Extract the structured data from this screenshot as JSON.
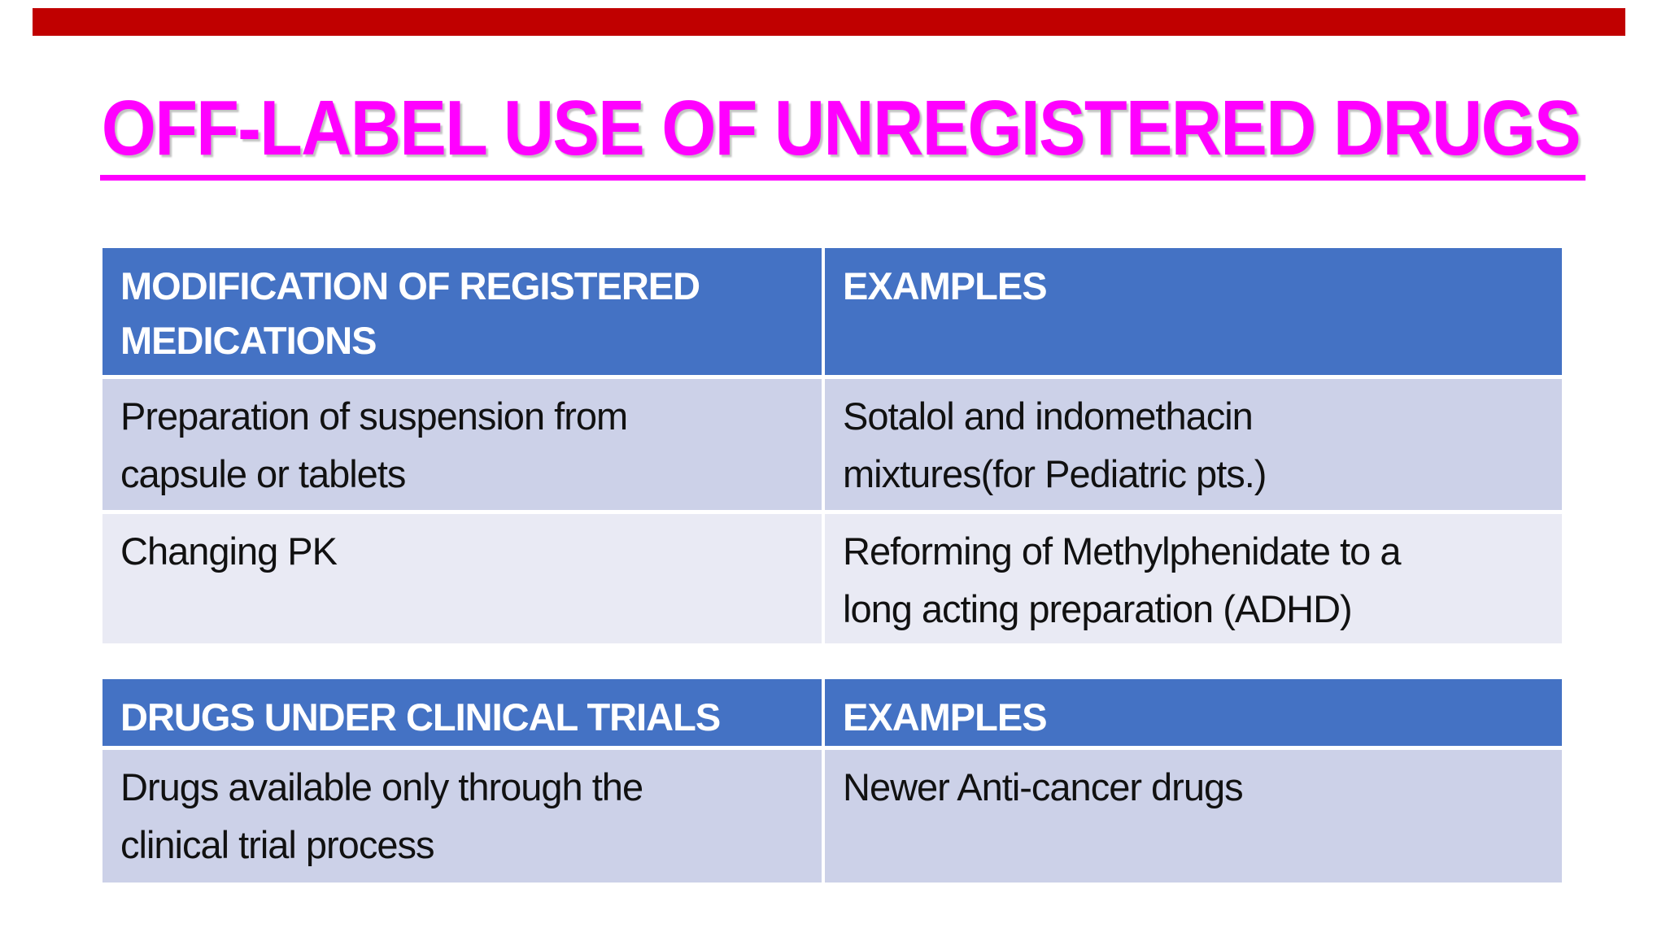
{
  "slide": {
    "title": "OFF-LABEL USE OF UNREGISTERED DRUGS"
  },
  "colors": {
    "title_magenta": "#ff00ff",
    "top_bar_red": "#c00000",
    "header_blue": "#4472c4",
    "row_band_dark": "#ccd1e8",
    "row_band_light": "#e9eaf4",
    "header_text": "#ffffff",
    "body_text": "#111111",
    "background": "#ffffff"
  },
  "tables": [
    {
      "headers": [
        "MODIFICATION OF REGISTERED\nMEDICATIONS",
        "EXAMPLES"
      ],
      "rows": [
        [
          "Preparation of suspension from\ncapsule or tablets",
          "Sotalol and indomethacin\nmixtures(for Pediatric pts.)"
        ],
        [
          "Changing PK",
          "Reforming of Methylphenidate to a\nlong acting preparation (ADHD)"
        ]
      ]
    },
    {
      "headers": [
        "DRUGS UNDER CLINICAL TRIALS",
        "EXAMPLES"
      ],
      "rows": [
        [
          "Drugs available only through the\nclinical trial process",
          "Newer Anti-cancer drugs"
        ]
      ]
    }
  ]
}
